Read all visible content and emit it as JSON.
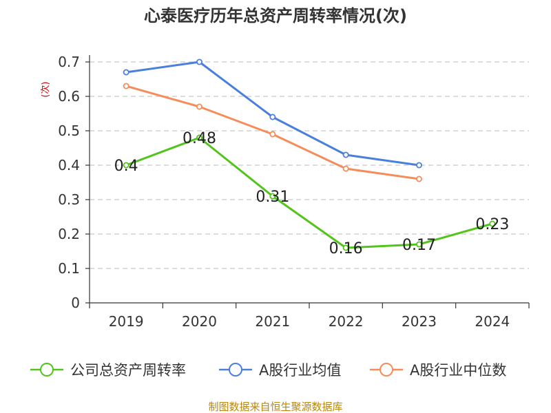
{
  "chart_data": {
    "type": "line",
    "title": "心泰医疗历年总资产周转率情况(次)",
    "ylabel": "(次)",
    "xlabel": "",
    "categories": [
      "2019",
      "2020",
      "2021",
      "2022",
      "2023",
      "2024"
    ],
    "y_ticks": [
      "0",
      "0.1",
      "0.2",
      "0.3",
      "0.4",
      "0.5",
      "0.6",
      "0.7"
    ],
    "ylim": [
      0,
      0.7
    ],
    "grid": true,
    "legend_position": "bottom",
    "series": [
      {
        "name": "公司总资产周转率",
        "color": "#52c41a",
        "values": [
          0.4,
          0.48,
          0.31,
          0.16,
          0.17,
          0.23
        ],
        "labels": [
          "0.4",
          "0.48",
          "0.31",
          "0.16",
          "0.17",
          "0.23"
        ]
      },
      {
        "name": "A股行业均值",
        "color": "#4a7fdc",
        "values": [
          0.67,
          0.7,
          0.54,
          0.43,
          0.4,
          null
        ]
      },
      {
        "name": "A股行业中位数",
        "color": "#f58c5a",
        "values": [
          0.63,
          0.57,
          0.49,
          0.39,
          0.36,
          null
        ]
      }
    ],
    "source": "制图数据来自恒生聚源数据库"
  }
}
